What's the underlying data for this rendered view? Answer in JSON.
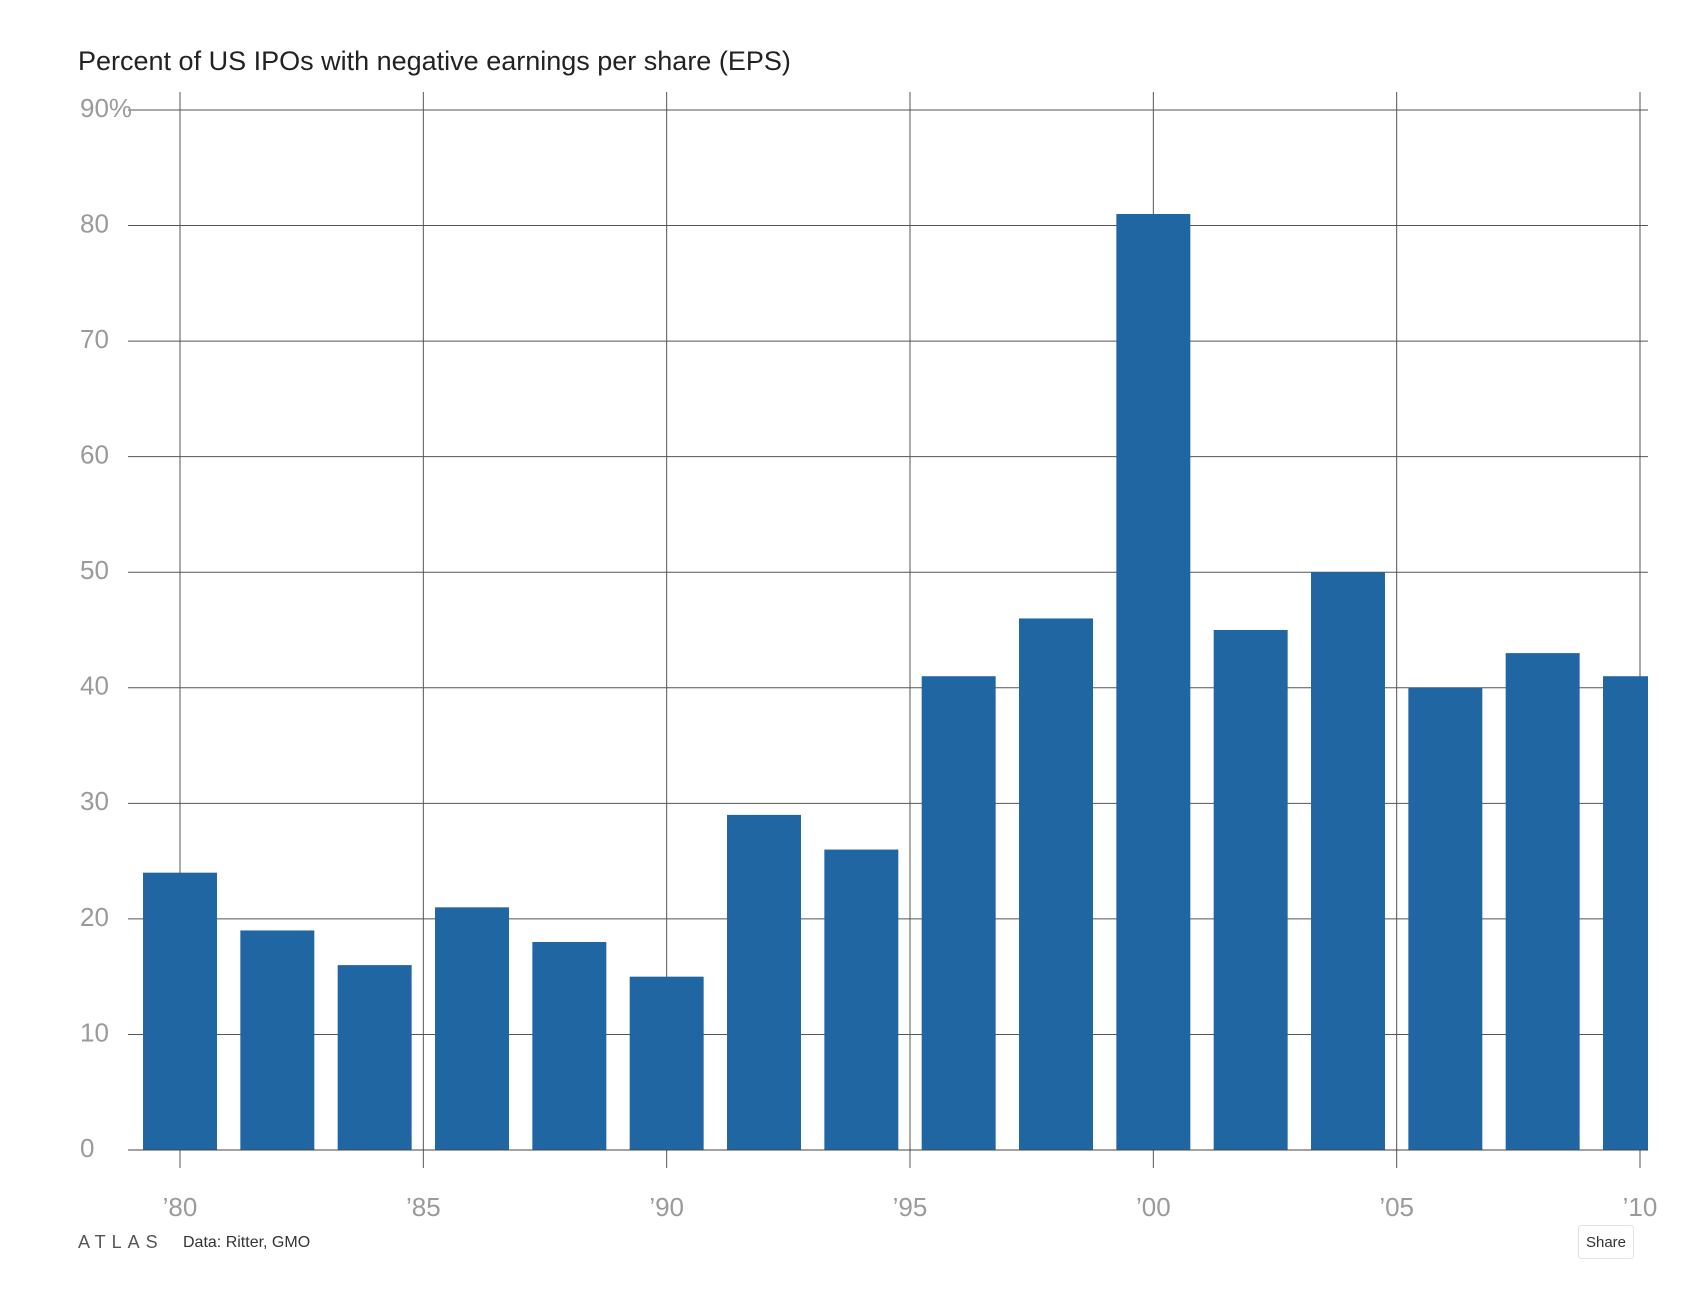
{
  "chart_data": {
    "type": "bar",
    "title": "Percent of US IPOs with negative earnings per share (EPS)",
    "xlabel": "",
    "ylabel": "",
    "categories": [
      "1980",
      "1982",
      "1984",
      "1986",
      "1988",
      "1990",
      "1992",
      "1994",
      "1996",
      "1998",
      "2000",
      "2002",
      "2004",
      "2006",
      "2008",
      "2010"
    ],
    "values": [
      24,
      19,
      16,
      21,
      18,
      15,
      29,
      26,
      41,
      46,
      81,
      45,
      50,
      40,
      43,
      41
    ],
    "ylim": [
      0,
      90
    ],
    "xlim": [
      1979,
      2010
    ],
    "y_ticks": [
      {
        "value": 0,
        "label": "0"
      },
      {
        "value": 10,
        "label": "10"
      },
      {
        "value": 20,
        "label": "20"
      },
      {
        "value": 30,
        "label": "30"
      },
      {
        "value": 40,
        "label": "40"
      },
      {
        "value": 50,
        "label": "50"
      },
      {
        "value": 60,
        "label": "60"
      },
      {
        "value": 70,
        "label": "70"
      },
      {
        "value": 80,
        "label": "80"
      },
      {
        "value": 90,
        "label": "90%"
      }
    ],
    "x_ticks": [
      {
        "value": 1980,
        "label": "’80"
      },
      {
        "value": 1985,
        "label": "’85"
      },
      {
        "value": 1990,
        "label": "’90"
      },
      {
        "value": 1995,
        "label": "’95"
      },
      {
        "value": 2000,
        "label": "’00"
      },
      {
        "value": 2005,
        "label": "’05"
      },
      {
        "value": 2010,
        "label": "’10"
      }
    ],
    "grid": true,
    "bar_color": "#2066a2"
  },
  "footer": {
    "logo": "ATLAS",
    "source": "Data: Ritter, GMO",
    "share_label": "Share"
  }
}
